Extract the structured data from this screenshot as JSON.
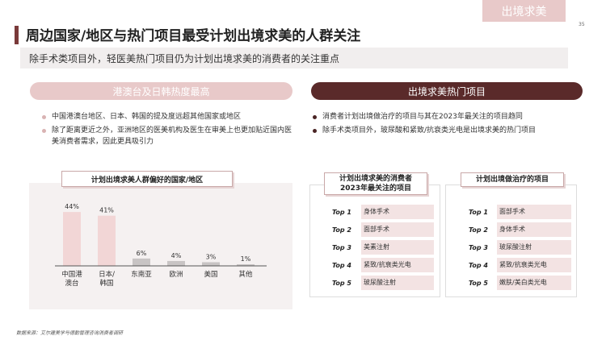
{
  "header": {
    "tag": "出境求美",
    "page_number": "35",
    "title": "周边国家/地区与热门项目最受计划出境求美的人群关注",
    "subtitle": "除手术类项目外，轻医美热门项目仍为计划出境求美的消费者的关注重点"
  },
  "left": {
    "heading": "港澳台及日韩热度最高",
    "bullets": [
      "中国港澳台地区、日本、韩国的提及度远超其他国家或地区",
      "除了距离更近之外，亚洲地区的医美机构及医生在审美上也更加贴近国内医美消费者需求，因此更具吸引力"
    ],
    "chart_title": "计划出境求美人群偏好的国家/地区"
  },
  "chart_data": {
    "type": "bar",
    "title": "计划出境求美人群偏好的国家/地区",
    "categories": [
      "中国港澳台",
      "日本/韩国",
      "东南亚",
      "欧洲",
      "美国",
      "其他"
    ],
    "category_lines": [
      [
        "中国港",
        "澳台"
      ],
      [
        "日本/",
        "韩国"
      ],
      [
        "东南亚"
      ],
      [
        "欧洲"
      ],
      [
        "美国"
      ],
      [
        "其他"
      ]
    ],
    "values": [
      44,
      41,
      6,
      4,
      3,
      1
    ],
    "value_labels": [
      "44%",
      "41%",
      "6%",
      "4%",
      "3%",
      "1%"
    ],
    "unit": "%",
    "ylim": [
      0,
      50
    ],
    "highlight_color": "#f2d6d6",
    "muted_color": "#c8c4c4",
    "highlight_count": 2
  },
  "right": {
    "heading": "出境求美热门项目",
    "bullets": [
      "消费者计划出境做治疗的项目与其在2023年最关注的项目趋同",
      "除手术类项目外，玻尿酸和紧致/抗衰类光电是出境求美的热门项目"
    ],
    "table1": {
      "title_lines": [
        "计划出境求美的消费者",
        "2023年最关注的项目"
      ],
      "rows": [
        {
          "rank": "Top 1",
          "item": "身体手术"
        },
        {
          "rank": "Top 2",
          "item": "面部手术"
        },
        {
          "rank": "Top 3",
          "item": "美素注射"
        },
        {
          "rank": "Top 4",
          "item": "紧致/抗衰类光电"
        },
        {
          "rank": "Top 5",
          "item": "玻尿酸注射"
        }
      ]
    },
    "table2": {
      "title": "计划出境做治疗的项目",
      "rows": [
        {
          "rank": "Top 1",
          "item": "面部手术"
        },
        {
          "rank": "Top 2",
          "item": "身体手术"
        },
        {
          "rank": "Top 3",
          "item": "玻尿酸注射"
        },
        {
          "rank": "Top 4",
          "item": "紧致/抗衰类光电"
        },
        {
          "rank": "Top 5",
          "item": "嫩肤/美白类光电"
        }
      ]
    }
  },
  "footer": {
    "source": "数据来源：艾尔建美学与德勤管理咨询消费者调研"
  },
  "colors": {
    "accent_dark": "#5a2a2a",
    "accent_light": "#e8c9c9",
    "title_bar": "#7a3a3a",
    "cell_fill": "#f3e3e3"
  }
}
